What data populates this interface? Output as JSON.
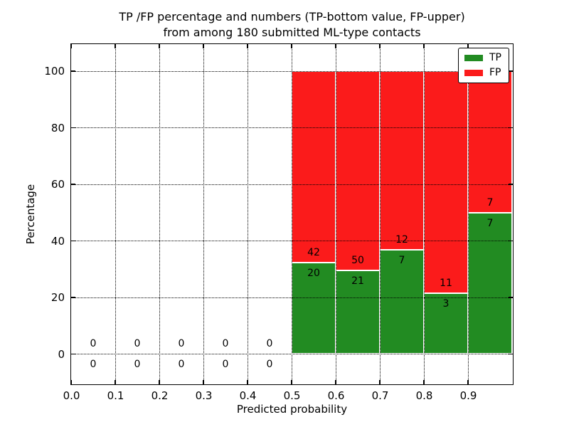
{
  "figure": {
    "title_line1": "TP /FP percentage and numbers (TP-bottom value, FP-upper)",
    "title_line2": "from among 180 submitted ML-type contacts",
    "xlabel": "Predicted probability",
    "ylabel": "Percentage"
  },
  "legend": {
    "items": [
      {
        "label": "TP",
        "color": "#228b22"
      },
      {
        "label": "FP",
        "color": "#fb1b1b"
      }
    ]
  },
  "chart_data": {
    "type": "bar",
    "stacked": true,
    "title": "TP /FP percentage and numbers (TP-bottom value, FP-upper)\nfrom among 180 submitted ML-type contacts",
    "xlabel": "Predicted probability",
    "ylabel": "Percentage",
    "total_contacts": 180,
    "xlim": [
      0.0,
      1.0
    ],
    "ylim": [
      -10.5,
      109.5
    ],
    "grid": true,
    "grid_style": "dotted",
    "legend_position": "upper right",
    "xticks": [
      0.0,
      0.1,
      0.2,
      0.3,
      0.4,
      0.5,
      0.6,
      0.7,
      0.8,
      0.9
    ],
    "yticks": [
      0,
      20,
      40,
      60,
      80,
      100
    ],
    "bins": [
      {
        "x0": 0.0,
        "x1": 0.1
      },
      {
        "x0": 0.1,
        "x1": 0.2
      },
      {
        "x0": 0.2,
        "x1": 0.3
      },
      {
        "x0": 0.3,
        "x1": 0.4
      },
      {
        "x0": 0.4,
        "x1": 0.5
      },
      {
        "x0": 0.5,
        "x1": 0.6
      },
      {
        "x0": 0.6,
        "x1": 0.7
      },
      {
        "x0": 0.7,
        "x1": 0.8
      },
      {
        "x0": 0.8,
        "x1": 0.9
      },
      {
        "x0": 0.9,
        "x1": 1.0
      }
    ],
    "series": [
      {
        "name": "TP",
        "color": "#228b22",
        "counts": [
          0,
          0,
          0,
          0,
          0,
          20,
          21,
          7,
          3,
          7
        ],
        "pct": [
          0,
          0,
          0,
          0,
          0,
          32.26,
          29.58,
          36.84,
          21.43,
          50.0
        ]
      },
      {
        "name": "FP",
        "color": "#fb1b1b",
        "counts": [
          0,
          0,
          0,
          0,
          0,
          42,
          50,
          12,
          11,
          7
        ],
        "pct": [
          0,
          0,
          0,
          0,
          0,
          67.74,
          70.42,
          63.16,
          78.57,
          50.0
        ]
      }
    ]
  }
}
